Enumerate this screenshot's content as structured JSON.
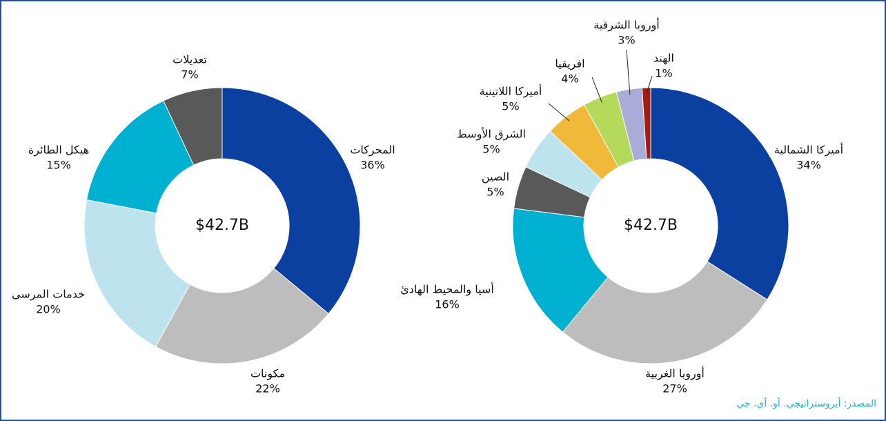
{
  "chart_data": [
    {
      "type": "donut",
      "center_label": "$42.7B",
      "labels": [
        "المحركات",
        "مكونات",
        "خدمات المرسى",
        "هيكل الطائرة",
        "تعديلات"
      ],
      "values": [
        36,
        22,
        20,
        15,
        7
      ],
      "value_labels": [
        "36%",
        "22%",
        "20%",
        "15%",
        "7%"
      ],
      "colors": [
        "#0b3fa0",
        "#bdbdbd",
        "#bde3ee",
        "#00b0d0",
        "#595959"
      ]
    },
    {
      "type": "donut",
      "center_label": "$42.7B",
      "labels": [
        "أميركا الشمالية",
        "أوروبا الغربية",
        "أسيا والمحيط الهادئ",
        "الصين",
        "الشرق الأوسط",
        "أميركا اللاتينية",
        "افريقيا",
        "أوروبا الشرقية",
        "الهند"
      ],
      "values": [
        34,
        27,
        16,
        5,
        5,
        5,
        4,
        3,
        1
      ],
      "value_labels": [
        "34%",
        "27%",
        "16%",
        "5%",
        "5%",
        "5%",
        "4%",
        "3%",
        "1%"
      ],
      "colors": [
        "#0b3fa0",
        "#bdbdbd",
        "#00b0d0",
        "#595959",
        "#bde3ee",
        "#f0b93a",
        "#b5d95a",
        "#a8acd6",
        "#a01d14"
      ]
    }
  ],
  "source": "المصدر: أيروستراتيجي. أو. أي. جي"
}
